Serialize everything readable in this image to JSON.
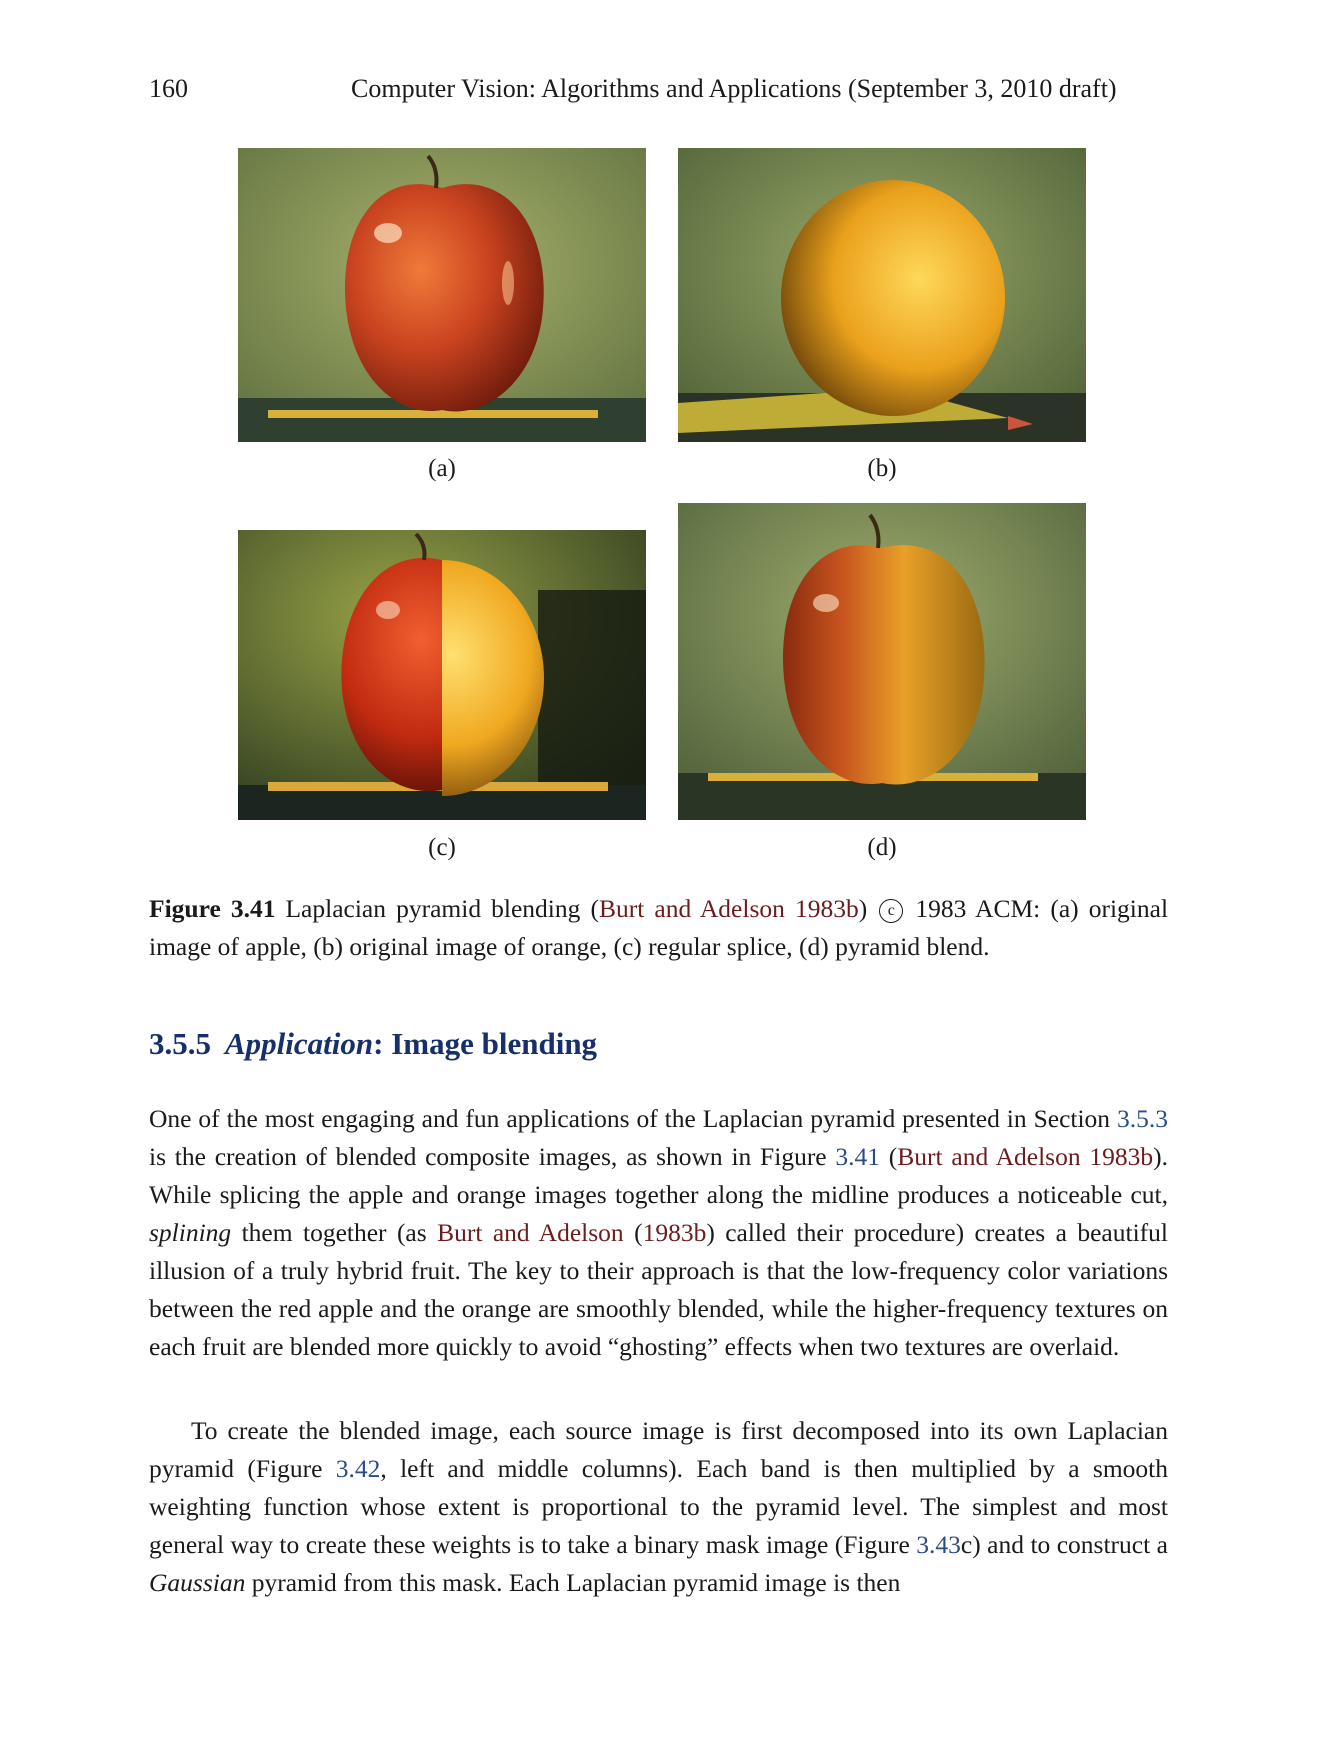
{
  "header": {
    "page_number": "160",
    "running_title": "Computer Vision: Algorithms and Applications (September 3, 2010 draft)"
  },
  "figure": {
    "subcaptions": {
      "a": "(a)",
      "b": "(b)",
      "c": "(c)",
      "d": "(d)"
    },
    "caption": {
      "label": "Figure 3.41",
      "text_1": "Laplacian pyramid blending (",
      "cite": "Burt and Adelson 1983b",
      "text_2": ")",
      "copyright_symbol": "c",
      "text_3": "1983 ACM: (a) original image of apple, (b) original image of orange, (c) regular splice, (d) pyramid blend."
    }
  },
  "section": {
    "number": "3.5.5",
    "title_italic": "Application",
    "title_rest": ": Image blending"
  },
  "paragraph_1": {
    "t1": "One of the most engaging and fun applications of the Laplacian pyramid presented in Section ",
    "ref1": "3.5.3",
    "t2": " is the creation of blended composite images, as shown in Figure ",
    "ref2": "3.41",
    "t3": " (",
    "cite1": "Burt and Adelson 1983b",
    "t4": "). While splicing the apple and orange images together along the midline produces a noticeable cut, ",
    "em1": "splining",
    "t5": " them together (as ",
    "cite2a": "Burt and Adelson",
    "t6": " (",
    "cite2b": "1983b",
    "t7": ") called their procedure) creates a beautiful illusion of a truly hybrid fruit. The key to their approach is that the low-frequency color variations between the red apple and the orange are smoothly blended, while the higher-frequency textures on each fruit are blended more quickly to avoid “ghosting” effects when two textures are overlaid."
  },
  "paragraph_2": {
    "t1": "To create the blended image, each source image is first decomposed into its own Laplacian pyramid (Figure ",
    "ref1": "3.42",
    "t2": ", left and middle columns). Each band is then multiplied by a smooth weighting function whose extent is proportional to the pyramid level. The simplest and most general way to create these weights is to take a binary mask image (Figure ",
    "ref2": "3.43",
    "t3": "c) and to construct a ",
    "em1": "Gaussian",
    "t4": " pyramid from this mask. Each Laplacian pyramid image is then"
  },
  "colors": {
    "heading": "#17306b",
    "citation": "#6b1d1d",
    "cross_reference": "#2b4a8a",
    "apple_red": "#c4401e",
    "orange_yellow": "#f0b020",
    "backdrop_green": "#7d8f4e"
  }
}
